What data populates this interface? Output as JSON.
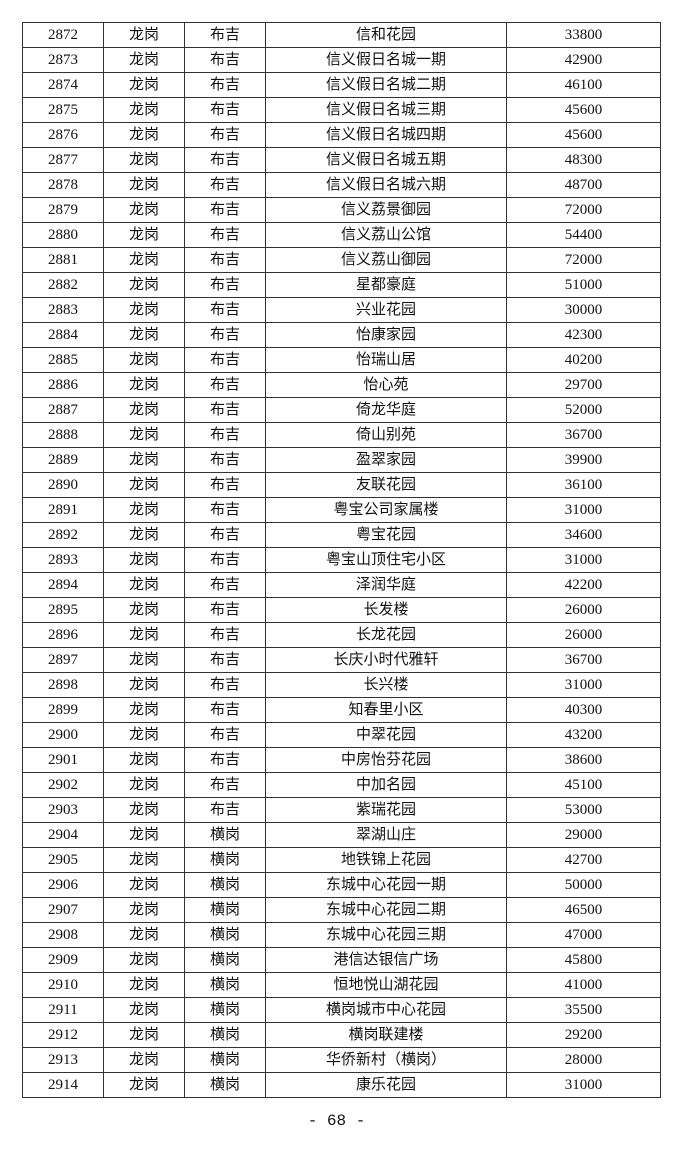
{
  "table": {
    "rows": [
      [
        "2872",
        "龙岗",
        "布吉",
        "信和花园",
        "33800"
      ],
      [
        "2873",
        "龙岗",
        "布吉",
        "信义假日名城一期",
        "42900"
      ],
      [
        "2874",
        "龙岗",
        "布吉",
        "信义假日名城二期",
        "46100"
      ],
      [
        "2875",
        "龙岗",
        "布吉",
        "信义假日名城三期",
        "45600"
      ],
      [
        "2876",
        "龙岗",
        "布吉",
        "信义假日名城四期",
        "45600"
      ],
      [
        "2877",
        "龙岗",
        "布吉",
        "信义假日名城五期",
        "48300"
      ],
      [
        "2878",
        "龙岗",
        "布吉",
        "信义假日名城六期",
        "48700"
      ],
      [
        "2879",
        "龙岗",
        "布吉",
        "信义荔景御园",
        "72000"
      ],
      [
        "2880",
        "龙岗",
        "布吉",
        "信义荔山公馆",
        "54400"
      ],
      [
        "2881",
        "龙岗",
        "布吉",
        "信义荔山御园",
        "72000"
      ],
      [
        "2882",
        "龙岗",
        "布吉",
        "星都豪庭",
        "51000"
      ],
      [
        "2883",
        "龙岗",
        "布吉",
        "兴业花园",
        "30000"
      ],
      [
        "2884",
        "龙岗",
        "布吉",
        "怡康家园",
        "42300"
      ],
      [
        "2885",
        "龙岗",
        "布吉",
        "怡瑞山居",
        "40200"
      ],
      [
        "2886",
        "龙岗",
        "布吉",
        "怡心苑",
        "29700"
      ],
      [
        "2887",
        "龙岗",
        "布吉",
        "倚龙华庭",
        "52000"
      ],
      [
        "2888",
        "龙岗",
        "布吉",
        "倚山别苑",
        "36700"
      ],
      [
        "2889",
        "龙岗",
        "布吉",
        "盈翠家园",
        "39900"
      ],
      [
        "2890",
        "龙岗",
        "布吉",
        "友联花园",
        "36100"
      ],
      [
        "2891",
        "龙岗",
        "布吉",
        "粤宝公司家属楼",
        "31000"
      ],
      [
        "2892",
        "龙岗",
        "布吉",
        "粤宝花园",
        "34600"
      ],
      [
        "2893",
        "龙岗",
        "布吉",
        "粤宝山顶住宅小区",
        "31000"
      ],
      [
        "2894",
        "龙岗",
        "布吉",
        "泽润华庭",
        "42200"
      ],
      [
        "2895",
        "龙岗",
        "布吉",
        "长发楼",
        "26000"
      ],
      [
        "2896",
        "龙岗",
        "布吉",
        "长龙花园",
        "26000"
      ],
      [
        "2897",
        "龙岗",
        "布吉",
        "长庆小时代雅轩",
        "36700"
      ],
      [
        "2898",
        "龙岗",
        "布吉",
        "长兴楼",
        "31000"
      ],
      [
        "2899",
        "龙岗",
        "布吉",
        "知春里小区",
        "40300"
      ],
      [
        "2900",
        "龙岗",
        "布吉",
        "中翠花园",
        "43200"
      ],
      [
        "2901",
        "龙岗",
        "布吉",
        "中房怡芬花园",
        "38600"
      ],
      [
        "2902",
        "龙岗",
        "布吉",
        "中加名园",
        "45100"
      ],
      [
        "2903",
        "龙岗",
        "布吉",
        "紫瑞花园",
        "53000"
      ],
      [
        "2904",
        "龙岗",
        "横岗",
        "翠湖山庄",
        "29000"
      ],
      [
        "2905",
        "龙岗",
        "横岗",
        "地铁锦上花园",
        "42700"
      ],
      [
        "2906",
        "龙岗",
        "横岗",
        "东城中心花园一期",
        "50000"
      ],
      [
        "2907",
        "龙岗",
        "横岗",
        "东城中心花园二期",
        "46500"
      ],
      [
        "2908",
        "龙岗",
        "横岗",
        "东城中心花园三期",
        "47000"
      ],
      [
        "2909",
        "龙岗",
        "横岗",
        "港信达银信广场",
        "45800"
      ],
      [
        "2910",
        "龙岗",
        "横岗",
        "恒地悦山湖花园",
        "41000"
      ],
      [
        "2911",
        "龙岗",
        "横岗",
        "横岗城市中心花园",
        "35500"
      ],
      [
        "2912",
        "龙岗",
        "横岗",
        "横岗联建楼",
        "29200"
      ],
      [
        "2913",
        "龙岗",
        "横岗",
        "华侨新村（横岗）",
        "28000"
      ],
      [
        "2914",
        "龙岗",
        "横岗",
        "康乐花园",
        "31000"
      ]
    ]
  },
  "footer": {
    "page_number": "- 68 -"
  }
}
